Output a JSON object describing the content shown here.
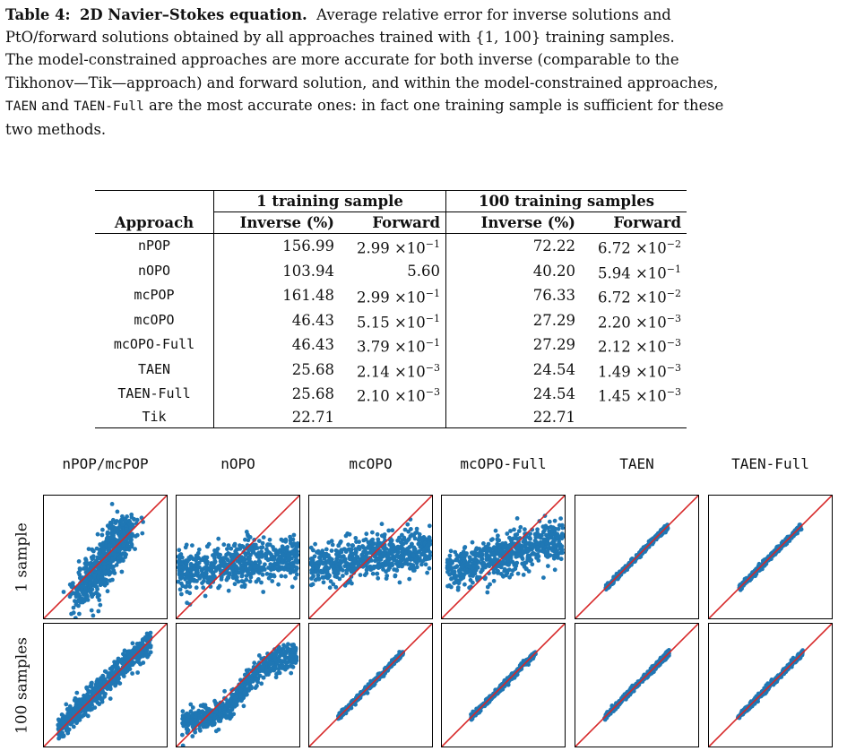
{
  "caption": {
    "label": "Table 4:",
    "heading": "2D Navier–Stokes equation.",
    "line1": "Average relative error for inverse solutions and",
    "line2": "PtO/forward solutions obtained by all approaches trained with {1, 100} training samples.",
    "line3": "The model-constrained approaches are more accurate for both inverse (comparable to the",
    "line4": "Tikhonov—Tik—approach) and forward solution, and within the model-constrained approaches,",
    "line5_m1": "TAEN",
    "line5_and": "and",
    "line5_m2": "TAEN-Full",
    "line5_rest": "are the most accurate ones: in fact one training sample is sufficient for these",
    "line6": "two methods."
  },
  "table": {
    "group1": "1 training sample",
    "group2": "100 training samples",
    "col_approach": "Approach",
    "col_inverse": "Inverse (%)",
    "col_forward": "Forward",
    "rows": [
      {
        "name": "nPOP",
        "inv1": "156.99",
        "fwd1": "2.99 ×10",
        "fwd1e": "−1",
        "inv100": "72.22",
        "fwd100": "6.72 ×10",
        "fwd100e": "−2"
      },
      {
        "name": "nOPO",
        "inv1": "103.94",
        "fwd1": "5.60",
        "fwd1e": "",
        "inv100": "40.20",
        "fwd100": "5.94 ×10",
        "fwd100e": "−1"
      },
      {
        "name": "mcPOP",
        "inv1": "161.48",
        "fwd1": "2.99 ×10",
        "fwd1e": "−1",
        "inv100": "76.33",
        "fwd100": "6.72 ×10",
        "fwd100e": "−2"
      },
      {
        "name": "mcOPO",
        "inv1": "46.43",
        "fwd1": "5.15 ×10",
        "fwd1e": "−1",
        "inv100": "27.29",
        "fwd100": "2.20 ×10",
        "fwd100e": "−3"
      },
      {
        "name": "mcOPO-Full",
        "inv1": "46.43",
        "fwd1": "3.79 ×10",
        "fwd1e": "−1",
        "inv100": "27.29",
        "fwd100": "2.12 ×10",
        "fwd100e": "−3"
      },
      {
        "name": "TAEN",
        "inv1": "25.68",
        "fwd1": "2.14 ×10",
        "fwd1e": "−3",
        "inv100": "24.54",
        "fwd100": "1.49 ×10",
        "fwd100e": "−3"
      },
      {
        "name": "TAEN-Full",
        "inv1": "25.68",
        "fwd1": "2.10 ×10",
        "fwd1e": "−3",
        "inv100": "24.54",
        "fwd100": "1.45 ×10",
        "fwd100e": "−3"
      },
      {
        "name": "Tik",
        "inv1": "22.71",
        "fwd1": "",
        "fwd1e": "",
        "inv100": "22.71",
        "fwd100": "",
        "fwd100e": ""
      }
    ]
  },
  "figure": {
    "column_titles": [
      "nPOP/mcPOP",
      "nOPO",
      "mcOPO",
      "mcOPO-Full",
      "TAEN",
      "TAEN-Full"
    ],
    "row_titles": [
      "1 sample",
      "100 samples"
    ],
    "point_color": "#1f77b4",
    "line_color": "#d62728"
  },
  "chart_data": [
    {
      "type": "scatter",
      "panel": "nPOP/mcPOP, 1 sample",
      "spread": "wide cloud around diagonal, lower-left bulge"
    },
    {
      "type": "scatter",
      "panel": "nOPO, 1 sample",
      "spread": "flat horizontal band across full width"
    },
    {
      "type": "scatter",
      "panel": "mcOPO, 1 sample",
      "spread": "flat horizontal band, mid height"
    },
    {
      "type": "scatter",
      "panel": "mcOPO-Full, 1 sample",
      "spread": "flat band, slightly rising"
    },
    {
      "type": "scatter",
      "panel": "TAEN, 1 sample",
      "spread": "tight along diagonal"
    },
    {
      "type": "scatter",
      "panel": "TAEN-Full, 1 sample",
      "spread": "tight along diagonal"
    },
    {
      "type": "scatter",
      "panel": "nPOP/mcPOP, 100 samples",
      "spread": "moderate band along diagonal"
    },
    {
      "type": "scatter",
      "panel": "nOPO, 100 samples",
      "spread": "sigmoid-shaped band"
    },
    {
      "type": "scatter",
      "panel": "mcOPO, 100 samples",
      "spread": "tight along diagonal"
    },
    {
      "type": "scatter",
      "panel": "mcOPO-Full, 100 samples",
      "spread": "tight along diagonal"
    },
    {
      "type": "scatter",
      "panel": "TAEN, 100 samples",
      "spread": "tight along diagonal"
    },
    {
      "type": "scatter",
      "panel": "TAEN-Full, 100 samples",
      "spread": "tight along diagonal"
    }
  ]
}
